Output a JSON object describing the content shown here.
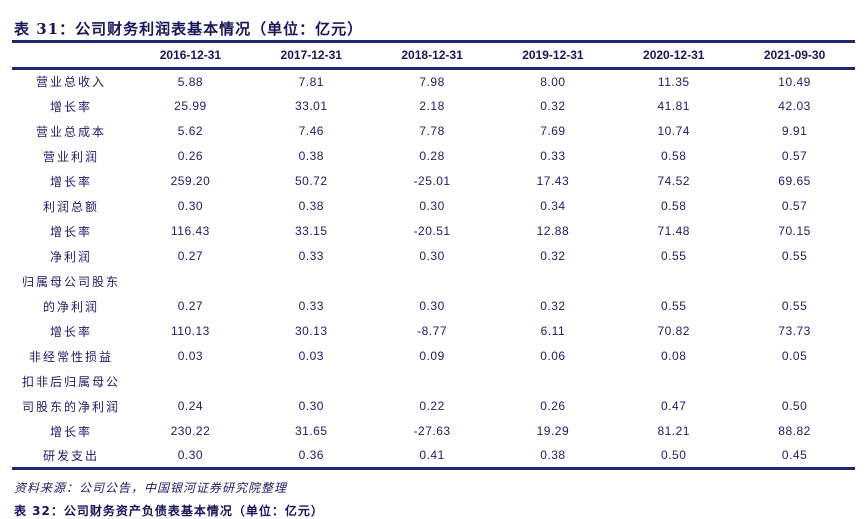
{
  "title": "表 31：公司财务利润表基本情况（单位：亿元）",
  "columns": [
    "",
    "2016-12-31",
    "2017-12-31",
    "2018-12-31",
    "2019-12-31",
    "2020-12-31",
    "2021-09-30"
  ],
  "rows": [
    {
      "label": "营业总收入",
      "values": [
        "5.88",
        "7.81",
        "7.98",
        "8.00",
        "11.35",
        "10.49"
      ]
    },
    {
      "label": "增长率",
      "values": [
        "25.99",
        "33.01",
        "2.18",
        "0.32",
        "41.81",
        "42.03"
      ]
    },
    {
      "label": "营业总成本",
      "values": [
        "5.62",
        "7.46",
        "7.78",
        "7.69",
        "10.74",
        "9.91"
      ]
    },
    {
      "label": "营业利润",
      "values": [
        "0.26",
        "0.38",
        "0.28",
        "0.33",
        "0.58",
        "0.57"
      ]
    },
    {
      "label": "增长率",
      "values": [
        "259.20",
        "50.72",
        "-25.01",
        "17.43",
        "74.52",
        "69.65"
      ]
    },
    {
      "label": "利润总额",
      "values": [
        "0.30",
        "0.38",
        "0.30",
        "0.34",
        "0.58",
        "0.57"
      ]
    },
    {
      "label": "增长率",
      "values": [
        "116.43",
        "33.15",
        "-20.51",
        "12.88",
        "71.48",
        "70.15"
      ]
    },
    {
      "label": "净利润",
      "values": [
        "0.27",
        "0.33",
        "0.30",
        "0.32",
        "0.55",
        "0.55"
      ]
    },
    {
      "label": "归属母公司股东",
      "values": [
        "",
        "",
        "",
        "",
        "",
        ""
      ]
    },
    {
      "label": "的净利润",
      "values": [
        "0.27",
        "0.33",
        "0.30",
        "0.32",
        "0.55",
        "0.55"
      ]
    },
    {
      "label": "增长率",
      "values": [
        "110.13",
        "30.13",
        "-8.77",
        "6.11",
        "70.82",
        "73.73"
      ]
    },
    {
      "label": "非经常性损益",
      "values": [
        "0.03",
        "0.03",
        "0.09",
        "0.06",
        "0.08",
        "0.05"
      ]
    },
    {
      "label": "扣非后归属母公",
      "values": [
        "",
        "",
        "",
        "",
        "",
        ""
      ]
    },
    {
      "label": "司股东的净利润",
      "values": [
        "0.24",
        "0.30",
        "0.22",
        "0.26",
        "0.47",
        "0.50"
      ]
    },
    {
      "label": "增长率",
      "values": [
        "230.22",
        "31.65",
        "-27.63",
        "19.29",
        "81.21",
        "88.82"
      ]
    },
    {
      "label": "研发支出",
      "values": [
        "0.30",
        "0.36",
        "0.41",
        "0.38",
        "0.50",
        "0.45"
      ]
    }
  ],
  "source": "资料来源：公司公告，中国银河证券研究院整理",
  "next_title": "表 32：公司财务资产负债表基本情况（单位：亿元）"
}
